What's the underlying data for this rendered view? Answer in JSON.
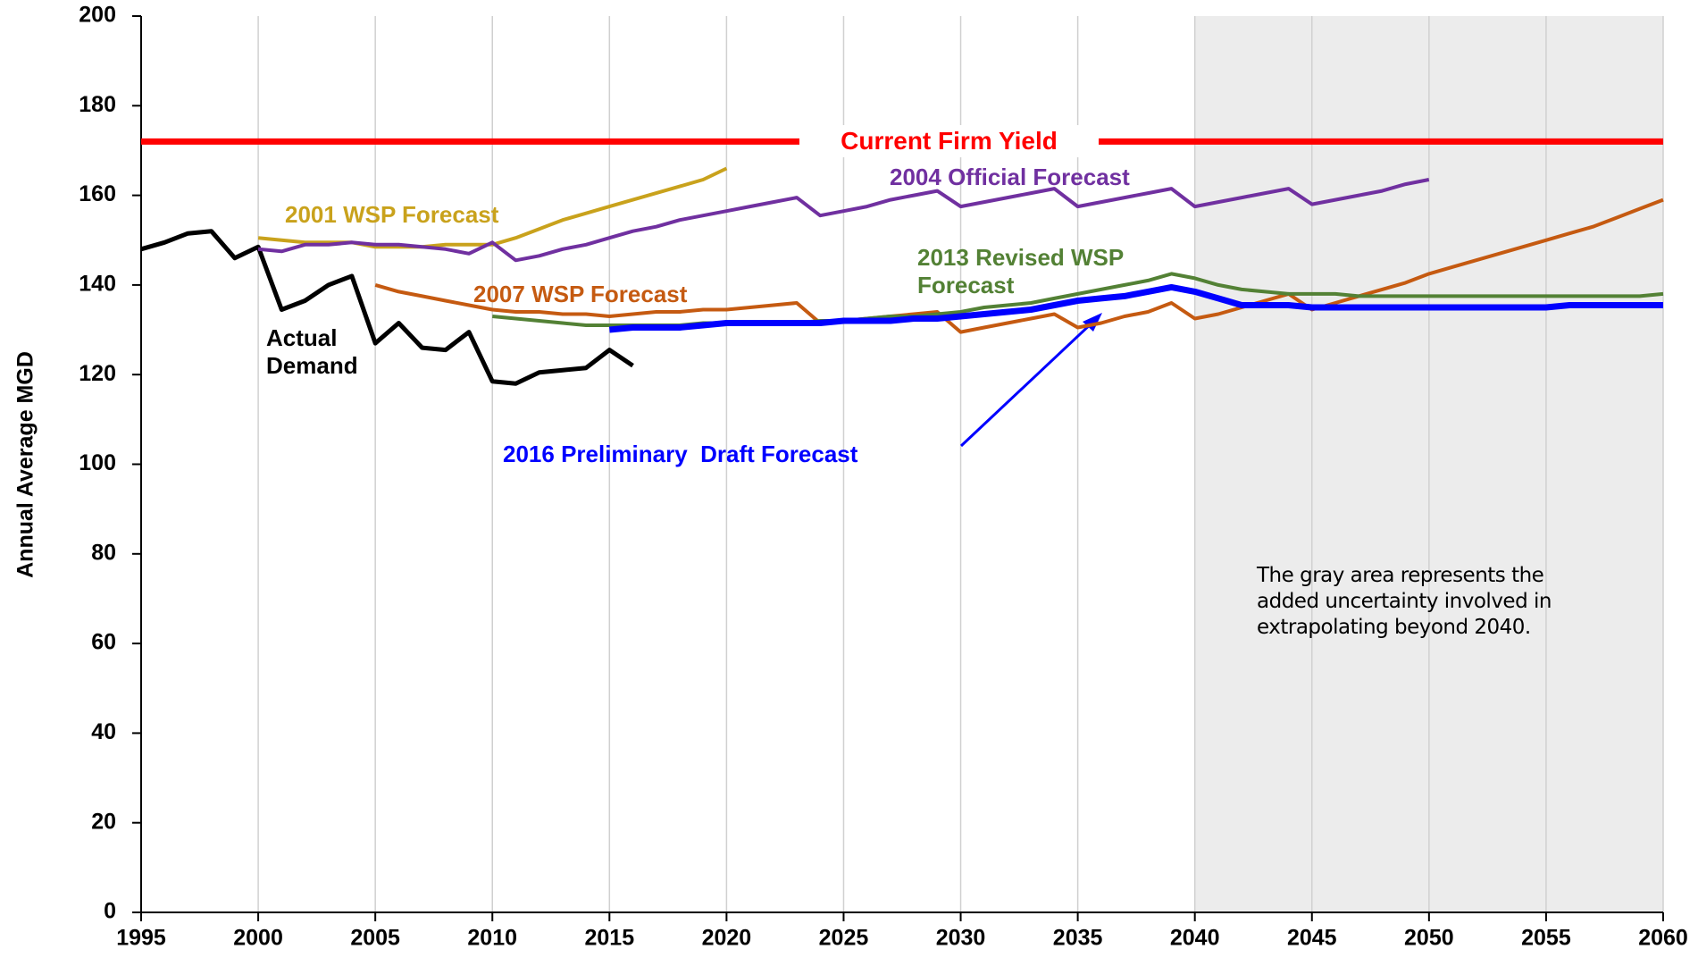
{
  "chart_data": {
    "type": "line",
    "ylabel": "Annual Average MGD",
    "xlim": [
      1995,
      2060
    ],
    "xticks": [
      1995,
      2000,
      2005,
      2010,
      2015,
      2020,
      2025,
      2030,
      2035,
      2040,
      2045,
      2050,
      2055,
      2060
    ],
    "ylim": [
      0,
      200
    ],
    "yticks": [
      0,
      20,
      40,
      60,
      80,
      100,
      120,
      140,
      160,
      180,
      200
    ],
    "grid": "x",
    "shaded_region": [
      2040,
      2060
    ],
    "reference_line": {
      "name": "Current Firm Yield",
      "value": 172,
      "color": "#ff0000"
    },
    "annotation": "The gray area represents the added uncertainty involved in extrapolating beyond 2040.",
    "series": [
      {
        "name": "Actual Demand",
        "color": "#000000",
        "x": [
          1995,
          1996,
          1997,
          1998,
          1999,
          2000,
          2001,
          2002,
          2003,
          2004,
          2005,
          2006,
          2007,
          2008,
          2009,
          2010,
          2011,
          2012,
          2013,
          2014,
          2015,
          2016
        ],
        "values": [
          148,
          149.5,
          151.5,
          152,
          146,
          148.5,
          134.5,
          136.5,
          140,
          142,
          127,
          131.5,
          126,
          125.5,
          129.5,
          118.5,
          118,
          120.5,
          121,
          121.5,
          125.5,
          122
        ]
      },
      {
        "name": "2001 WSP Forecast",
        "color": "#c9a21c",
        "x": [
          2000,
          2001,
          2002,
          2003,
          2004,
          2005,
          2006,
          2007,
          2008,
          2009,
          2010,
          2011,
          2012,
          2013,
          2014,
          2015,
          2016,
          2017,
          2018,
          2019,
          2020
        ],
        "values": [
          150.5,
          150,
          149.5,
          149.5,
          149.5,
          148.5,
          148.5,
          148.5,
          149,
          149,
          149,
          150.5,
          152.5,
          154.5,
          156,
          157.5,
          159,
          160.5,
          162,
          163.5,
          166
        ]
      },
      {
        "name": "2004 Official Forecast",
        "color": "#7030a0",
        "x": [
          2000,
          2001,
          2002,
          2003,
          2004,
          2005,
          2006,
          2007,
          2008,
          2009,
          2010,
          2011,
          2012,
          2013,
          2014,
          2015,
          2016,
          2017,
          2018,
          2019,
          2020,
          2021,
          2022,
          2023,
          2024,
          2025,
          2026,
          2027,
          2028,
          2029,
          2030,
          2031,
          2032,
          2033,
          2034,
          2035,
          2036,
          2037,
          2038,
          2039,
          2040,
          2041,
          2042,
          2043,
          2044,
          2045,
          2046,
          2047,
          2048,
          2049,
          2050
        ],
        "values": [
          148,
          147.5,
          149,
          149,
          149.5,
          149,
          149,
          148.5,
          148,
          147,
          149.5,
          145.5,
          146.5,
          148,
          149,
          150.5,
          152,
          153,
          154.5,
          155.5,
          156.5,
          157.5,
          158.5,
          159.5,
          155.5,
          156.5,
          157.5,
          159,
          160,
          161,
          157.5,
          158.5,
          159.5,
          160.5,
          161.5,
          157.5,
          158.5,
          159.5,
          160.5,
          161.5,
          157.5,
          158.5,
          159.5,
          160.5,
          161.5,
          158,
          159,
          160,
          161,
          162.5,
          163.5
        ]
      },
      {
        "name": "2007 WSP Forecast",
        "color": "#c55a11",
        "x": [
          2005,
          2006,
          2007,
          2008,
          2009,
          2010,
          2011,
          2012,
          2013,
          2014,
          2015,
          2016,
          2017,
          2018,
          2019,
          2020,
          2021,
          2022,
          2023,
          2024,
          2025,
          2026,
          2027,
          2028,
          2029,
          2030,
          2031,
          2032,
          2033,
          2034,
          2035,
          2036,
          2037,
          2038,
          2039,
          2040,
          2041,
          2042,
          2043,
          2044,
          2045,
          2046,
          2047,
          2048,
          2049,
          2050,
          2051,
          2052,
          2053,
          2054,
          2055,
          2056,
          2057,
          2058,
          2059,
          2060
        ],
        "values": [
          140,
          138.5,
          137.5,
          136.5,
          135.5,
          134.5,
          134,
          134,
          133.5,
          133.5,
          133,
          133.5,
          134,
          134,
          134.5,
          134.5,
          135,
          135.5,
          136,
          131.5,
          132,
          132.5,
          133,
          133.5,
          134,
          129.5,
          130.5,
          131.5,
          132.5,
          133.5,
          130.5,
          131.5,
          133,
          134,
          136,
          132.5,
          133.5,
          135,
          136.5,
          138,
          134.5,
          136,
          137.5,
          139,
          140.5,
          142.5,
          144,
          145.5,
          147,
          148.5,
          150,
          151.5,
          153,
          155,
          157,
          159
        ]
      },
      {
        "name": "2013 Revised WSP Forecast",
        "color": "#538135",
        "x": [
          2010,
          2011,
          2012,
          2013,
          2014,
          2015,
          2016,
          2017,
          2018,
          2019,
          2020,
          2021,
          2022,
          2023,
          2024,
          2025,
          2026,
          2027,
          2028,
          2029,
          2030,
          2031,
          2032,
          2033,
          2034,
          2035,
          2036,
          2037,
          2038,
          2039,
          2040,
          2041,
          2042,
          2043,
          2044,
          2045,
          2046,
          2047,
          2048,
          2049,
          2050,
          2051,
          2052,
          2053,
          2054,
          2055,
          2056,
          2057,
          2058,
          2059,
          2060
        ],
        "values": [
          133,
          132.5,
          132,
          131.5,
          131,
          131,
          131,
          131,
          131,
          131.5,
          131.5,
          131.5,
          131.5,
          131.5,
          132,
          132,
          132.5,
          133,
          133,
          133.5,
          134,
          135,
          135.5,
          136,
          137,
          138,
          139,
          140,
          141,
          142.5,
          141.5,
          140,
          139,
          138.5,
          138,
          138,
          138,
          137.5,
          137.5,
          137.5,
          137.5,
          137.5,
          137.5,
          137.5,
          137.5,
          137.5,
          137.5,
          137.5,
          137.5,
          137.5,
          138
        ]
      },
      {
        "name": "2016 Preliminary  Draft Forecast",
        "color": "#0000ff",
        "x": [
          2015,
          2016,
          2017,
          2018,
          2019,
          2020,
          2021,
          2022,
          2023,
          2024,
          2025,
          2026,
          2027,
          2028,
          2029,
          2030,
          2031,
          2032,
          2033,
          2034,
          2035,
          2036,
          2037,
          2038,
          2039,
          2040,
          2041,
          2042,
          2043,
          2044,
          2045,
          2046,
          2047,
          2048,
          2049,
          2050,
          2051,
          2052,
          2053,
          2054,
          2055,
          2056,
          2057,
          2058,
          2059,
          2060
        ],
        "values": [
          130,
          130.5,
          130.5,
          130.5,
          131,
          131.5,
          131.5,
          131.5,
          131.5,
          131.5,
          132,
          132,
          132,
          132.5,
          132.5,
          133,
          133.5,
          134,
          134.5,
          135.5,
          136.5,
          137,
          137.5,
          138.5,
          139.5,
          138.5,
          137,
          135.5,
          135.5,
          135.5,
          135,
          135,
          135,
          135,
          135,
          135,
          135,
          135,
          135,
          135,
          135,
          135.5,
          135.5,
          135.5,
          135.5,
          135.5
        ]
      }
    ]
  }
}
